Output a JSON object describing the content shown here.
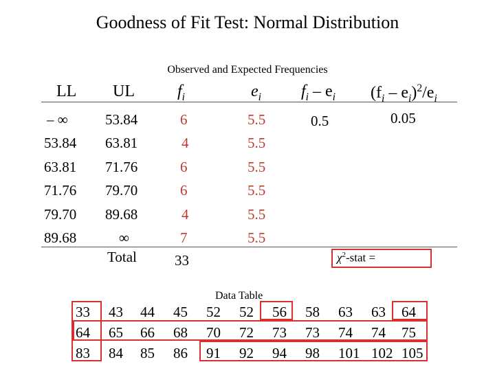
{
  "title": "Goodness of Fit Test:  Normal Distribution",
  "subtitle": "Observed and Expected Frequencies",
  "headers": {
    "ll": "LL",
    "ul": "UL",
    "fi": "f",
    "fi_sub": "i",
    "ei": "e",
    "ei_sub": "i",
    "diff_f": "f",
    "diff_f_sub": "i",
    "diff_minus": " – e",
    "diff_e_sub": "i",
    "chi_open": "(f",
    "chi_f_sub": "i",
    "chi_mid": " – e",
    "chi_e_sub": "i",
    "chi_close": ")",
    "chi_sup": "2",
    "chi_slash": "/e",
    "chi_last_sub": "i"
  },
  "rows": [
    {
      "ll": "– ∞",
      "ul": "53.84",
      "fi": "6",
      "ei": "5.5",
      "diff": "0.5",
      "chi": "0.05"
    },
    {
      "ll": "53.84",
      "ul": "63.81",
      "fi": "4",
      "ei": "5.5",
      "diff": "",
      "chi": ""
    },
    {
      "ll": "63.81",
      "ul": "71.76",
      "fi": "6",
      "ei": "5.5",
      "diff": "",
      "chi": ""
    },
    {
      "ll": "71.76",
      "ul": "79.70",
      "fi": "6",
      "ei": "5.5",
      "diff": "",
      "chi": ""
    },
    {
      "ll": "79.70",
      "ul": "89.68",
      "fi": "4",
      "ei": "5.5",
      "diff": "",
      "chi": ""
    },
    {
      "ll": "89.68",
      "ul": "∞",
      "fi": "7",
      "ei": "5.5",
      "diff": "",
      "chi": ""
    }
  ],
  "total_label": "Total",
  "total_value": "33",
  "chi_stat": {
    "chi": "χ",
    "sup": "2",
    "label": "-stat ="
  },
  "data_table_label": "Data Table",
  "data_table": [
    [
      "33",
      "43",
      "44",
      "45",
      "52",
      "52",
      "56",
      "58",
      "63",
      "63",
      "64"
    ],
    [
      "64",
      "65",
      "66",
      "68",
      "70",
      "72",
      "73",
      "73",
      "74",
      "74",
      "75"
    ],
    [
      "83",
      "84",
      "85",
      "86",
      "91",
      "92",
      "94",
      "98",
      "101",
      "102",
      "105"
    ]
  ],
  "colors": {
    "accent": "#c0392b",
    "box": "#d9302e"
  }
}
